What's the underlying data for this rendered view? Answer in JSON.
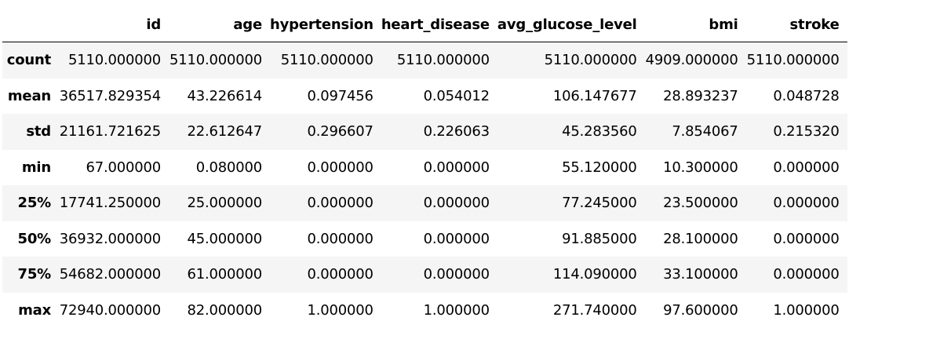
{
  "table": {
    "columns": [
      "",
      "id",
      "age",
      "hypertension",
      "heart_disease",
      "avg_glucose_level",
      "bmi",
      "stroke"
    ],
    "rows": [
      {
        "label": "count",
        "values": [
          "5110.000000",
          "5110.000000",
          "5110.000000",
          "5110.000000",
          "5110.000000",
          "4909.000000",
          "5110.000000"
        ]
      },
      {
        "label": "mean",
        "values": [
          "36517.829354",
          "43.226614",
          "0.097456",
          "0.054012",
          "106.147677",
          "28.893237",
          "0.048728"
        ]
      },
      {
        "label": "std",
        "values": [
          "21161.721625",
          "22.612647",
          "0.296607",
          "0.226063",
          "45.283560",
          "7.854067",
          "0.215320"
        ]
      },
      {
        "label": "min",
        "values": [
          "67.000000",
          "0.080000",
          "0.000000",
          "0.000000",
          "55.120000",
          "10.300000",
          "0.000000"
        ]
      },
      {
        "label": "25%",
        "values": [
          "17741.250000",
          "25.000000",
          "0.000000",
          "0.000000",
          "77.245000",
          "23.500000",
          "0.000000"
        ]
      },
      {
        "label": "50%",
        "values": [
          "36932.000000",
          "45.000000",
          "0.000000",
          "0.000000",
          "91.885000",
          "28.100000",
          "0.000000"
        ]
      },
      {
        "label": "75%",
        "values": [
          "54682.000000",
          "61.000000",
          "0.000000",
          "0.000000",
          "114.090000",
          "33.100000",
          "0.000000"
        ]
      },
      {
        "label": "max",
        "values": [
          "72940.000000",
          "82.000000",
          "1.000000",
          "1.000000",
          "271.740000",
          "97.600000",
          "1.000000"
        ]
      }
    ]
  }
}
